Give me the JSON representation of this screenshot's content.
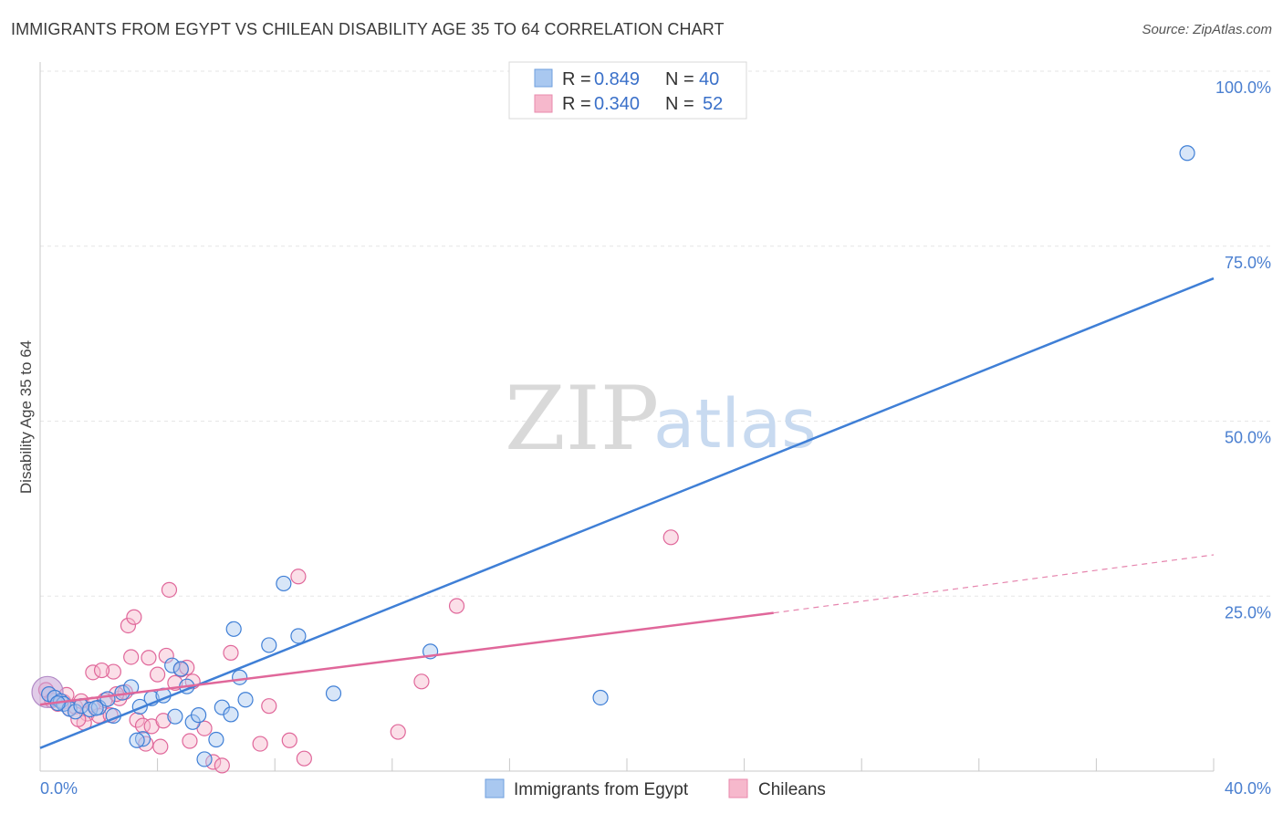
{
  "title": "IMMIGRANTS FROM EGYPT VS CHILEAN DISABILITY AGE 35 TO 64 CORRELATION CHART",
  "source": "Source: ZipAtlas.com",
  "watermark": {
    "zip": "ZIP",
    "atlas": "atlas"
  },
  "colors": {
    "blue": "#3f7fd6",
    "blue_fill": "#a9c8f0",
    "pink": "#e0679a",
    "pink_fill": "#f6b8cc",
    "grid": "#e6e6e6",
    "tick_text": "#4a7fd0"
  },
  "legend": {
    "rows": [
      {
        "r_label": "R =",
        "r_value": "0.849",
        "n_label": "N =",
        "n_value": "40",
        "series": "blue"
      },
      {
        "r_label": "R =",
        "r_value": "0.340",
        "n_label": "N =",
        "n_value": "52",
        "series": "pink"
      }
    ]
  },
  "chart_data": {
    "type": "scatter",
    "title": "IMMIGRANTS FROM EGYPT VS CHILEAN DISABILITY AGE 35 TO 64 CORRELATION CHART",
    "xlabel": "",
    "ylabel": "Disability Age 35 to 64",
    "xlim": [
      0,
      40
    ],
    "ylim": [
      0,
      100
    ],
    "x_tick_labels": [
      "0.0%",
      "40.0%"
    ],
    "y_ticks": [
      25,
      50,
      75,
      100
    ],
    "y_tick_labels": [
      "25.0%",
      "50.0%",
      "75.0%",
      "100.0%"
    ],
    "legend_position": "top-center",
    "series": [
      {
        "name": "Immigrants from Egypt",
        "color": "blue",
        "points": [
          [
            0.3,
            11.0
          ],
          [
            0.5,
            10.5
          ],
          [
            0.7,
            10.0
          ],
          [
            0.8,
            9.6
          ],
          [
            1.0,
            8.9
          ],
          [
            1.2,
            8.5
          ],
          [
            1.4,
            9.3
          ],
          [
            1.7,
            8.8
          ],
          [
            2.0,
            9.1
          ],
          [
            2.3,
            10.3
          ],
          [
            2.5,
            7.9
          ],
          [
            2.8,
            11.2
          ],
          [
            3.1,
            12.0
          ],
          [
            3.4,
            9.2
          ],
          [
            3.8,
            10.4
          ],
          [
            4.2,
            10.8
          ],
          [
            4.5,
            15.1
          ],
          [
            4.8,
            14.6
          ],
          [
            5.0,
            12.1
          ],
          [
            4.6,
            7.8
          ],
          [
            5.2,
            7.0
          ],
          [
            5.4,
            8.0
          ],
          [
            3.5,
            4.6
          ],
          [
            3.3,
            4.4
          ],
          [
            5.6,
            1.7
          ],
          [
            6.0,
            4.5
          ],
          [
            6.2,
            9.1
          ],
          [
            6.5,
            8.1
          ],
          [
            6.6,
            20.3
          ],
          [
            6.8,
            13.4
          ],
          [
            7.0,
            10.2
          ],
          [
            7.8,
            18.0
          ],
          [
            8.3,
            26.8
          ],
          [
            8.8,
            19.3
          ],
          [
            10.0,
            11.1
          ],
          [
            13.3,
            17.1
          ],
          [
            19.1,
            10.5
          ],
          [
            39.1,
            88.3
          ],
          [
            0.6,
            9.7
          ],
          [
            1.9,
            9.0
          ]
        ],
        "trend": {
          "x0": 0,
          "y0": 3.3,
          "x1": 40,
          "y1": 70.4,
          "style": "solid"
        }
      },
      {
        "name": "Chileans",
        "color": "pink",
        "points": [
          [
            0.2,
            11.6
          ],
          [
            0.4,
            10.1
          ],
          [
            0.6,
            9.6
          ],
          [
            0.8,
            9.9
          ],
          [
            1.0,
            8.9
          ],
          [
            1.2,
            9.2
          ],
          [
            1.4,
            10.0
          ],
          [
            1.6,
            8.2
          ],
          [
            1.8,
            9.5
          ],
          [
            2.0,
            7.9
          ],
          [
            2.2,
            10.1
          ],
          [
            1.8,
            14.1
          ],
          [
            2.5,
            14.2
          ],
          [
            2.7,
            10.4
          ],
          [
            2.9,
            11.3
          ],
          [
            3.0,
            20.8
          ],
          [
            3.1,
            16.3
          ],
          [
            3.2,
            22.0
          ],
          [
            3.3,
            7.3
          ],
          [
            3.5,
            6.5
          ],
          [
            3.6,
            3.9
          ],
          [
            3.8,
            6.4
          ],
          [
            4.0,
            13.8
          ],
          [
            4.1,
            3.5
          ],
          [
            4.2,
            7.2
          ],
          [
            4.3,
            16.5
          ],
          [
            4.4,
            25.9
          ],
          [
            4.6,
            12.6
          ],
          [
            4.8,
            14.5
          ],
          [
            5.0,
            14.8
          ],
          [
            5.1,
            4.3
          ],
          [
            5.2,
            12.8
          ],
          [
            5.6,
            6.1
          ],
          [
            5.9,
            1.3
          ],
          [
            6.2,
            0.8
          ],
          [
            6.5,
            16.9
          ],
          [
            7.5,
            3.9
          ],
          [
            7.8,
            9.3
          ],
          [
            8.5,
            4.4
          ],
          [
            8.8,
            27.8
          ],
          [
            9.0,
            1.8
          ],
          [
            12.2,
            5.6
          ],
          [
            13.0,
            12.8
          ],
          [
            14.2,
            23.6
          ],
          [
            21.5,
            33.4
          ],
          [
            2.6,
            11.0
          ],
          [
            1.5,
            6.9
          ],
          [
            2.1,
            14.4
          ],
          [
            3.7,
            16.2
          ],
          [
            0.9,
            10.9
          ],
          [
            1.3,
            7.4
          ],
          [
            2.4,
            8.0
          ]
        ],
        "trend": {
          "x0": 0,
          "y0": 9.5,
          "x1": 25,
          "y1": 22.6,
          "style": "solid",
          "dashed_extension": {
            "x0": 25,
            "y0": 22.6,
            "x1": 40,
            "y1": 30.9
          }
        }
      }
    ]
  }
}
